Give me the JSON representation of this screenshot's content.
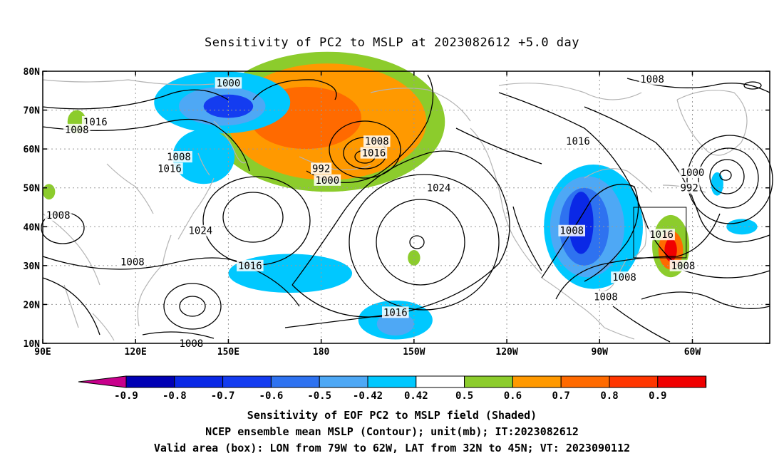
{
  "title": "Sensitivity of PC2 to MSLP at 2023082612 +5.0 day",
  "lat_labels": [
    "80N",
    "70N",
    "60N",
    "50N",
    "40N",
    "30N",
    "20N",
    "10N"
  ],
  "lon_labels": [
    "90E",
    "120E",
    "150E",
    "180",
    "150W",
    "120W",
    "90W",
    "60W"
  ],
  "contour_labels": [
    {
      "text": "1000",
      "lon": 150,
      "lat": 77
    },
    {
      "text": "1016",
      "lon": 107,
      "lat": 67
    },
    {
      "text": "1008",
      "lon": 101,
      "lat": 65
    },
    {
      "text": "1008",
      "lon": 134,
      "lat": 58
    },
    {
      "text": "1016",
      "lon": 131,
      "lat": 55
    },
    {
      "text": "992",
      "lon": 180,
      "lat": 55
    },
    {
      "text": "1000",
      "lon": 182,
      "lat": 52
    },
    {
      "text": "1008",
      "lon": 198,
      "lat": 62
    },
    {
      "text": "1016",
      "lon": 197,
      "lat": 59
    },
    {
      "text": "1024",
      "lon": 218,
      "lat": 50
    },
    {
      "text": "1016",
      "lon": 263,
      "lat": 62
    },
    {
      "text": "1008",
      "lon": 287,
      "lat": 78
    },
    {
      "text": "1000",
      "lon": 300,
      "lat": 54
    },
    {
      "text": "992",
      "lon": 299,
      "lat": 50
    },
    {
      "text": "1008",
      "lon": 95,
      "lat": 43
    },
    {
      "text": "1024",
      "lon": 141,
      "lat": 39
    },
    {
      "text": "1016",
      "lon": 157,
      "lat": 30
    },
    {
      "text": "1008",
      "lon": 119,
      "lat": 31
    },
    {
      "text": "1008",
      "lon": 138,
      "lat": 10
    },
    {
      "text": "1016",
      "lon": 204,
      "lat": 18
    },
    {
      "text": "1008",
      "lon": 261,
      "lat": 39
    },
    {
      "text": "1008",
      "lon": 278,
      "lat": 27
    },
    {
      "text": "1008",
      "lon": 272,
      "lat": 22
    },
    {
      "text": "1016",
      "lon": 290,
      "lat": 38
    },
    {
      "text": "1008",
      "lon": 297,
      "lat": 30
    }
  ],
  "colorbar": {
    "labels": [
      "-0.9",
      "-0.8",
      "-0.7",
      "-0.6",
      "-0.5",
      "-0.42",
      "0.42",
      "0.5",
      "0.6",
      "0.7",
      "0.8",
      "0.9"
    ],
    "colors": [
      "#0000b4",
      "#0a28e6",
      "#143cf0",
      "#2e72f0",
      "#4ea8f5",
      "#00c8ff",
      "#ffffff",
      "#8ccc2c",
      "#ff9900",
      "#ff6a00",
      "#ff3600",
      "#f00000"
    ],
    "left_tip_color": "#c8008c",
    "right_tip_color": "#ff9ec8"
  },
  "valid_box": {
    "lon_min": 281,
    "lon_max": 298,
    "lat_min": 32,
    "lat_max": 45
  },
  "captions": [
    "Sensitivity of EOF PC2 to MSLP field (Shaded)",
    "NCEP ensemble mean MSLP (Contour); unit(mb); IT:2023082612",
    "Valid area (box): LON from 79W to 62W, LAT from 32N to 45N; VT: 2023090112"
  ]
}
